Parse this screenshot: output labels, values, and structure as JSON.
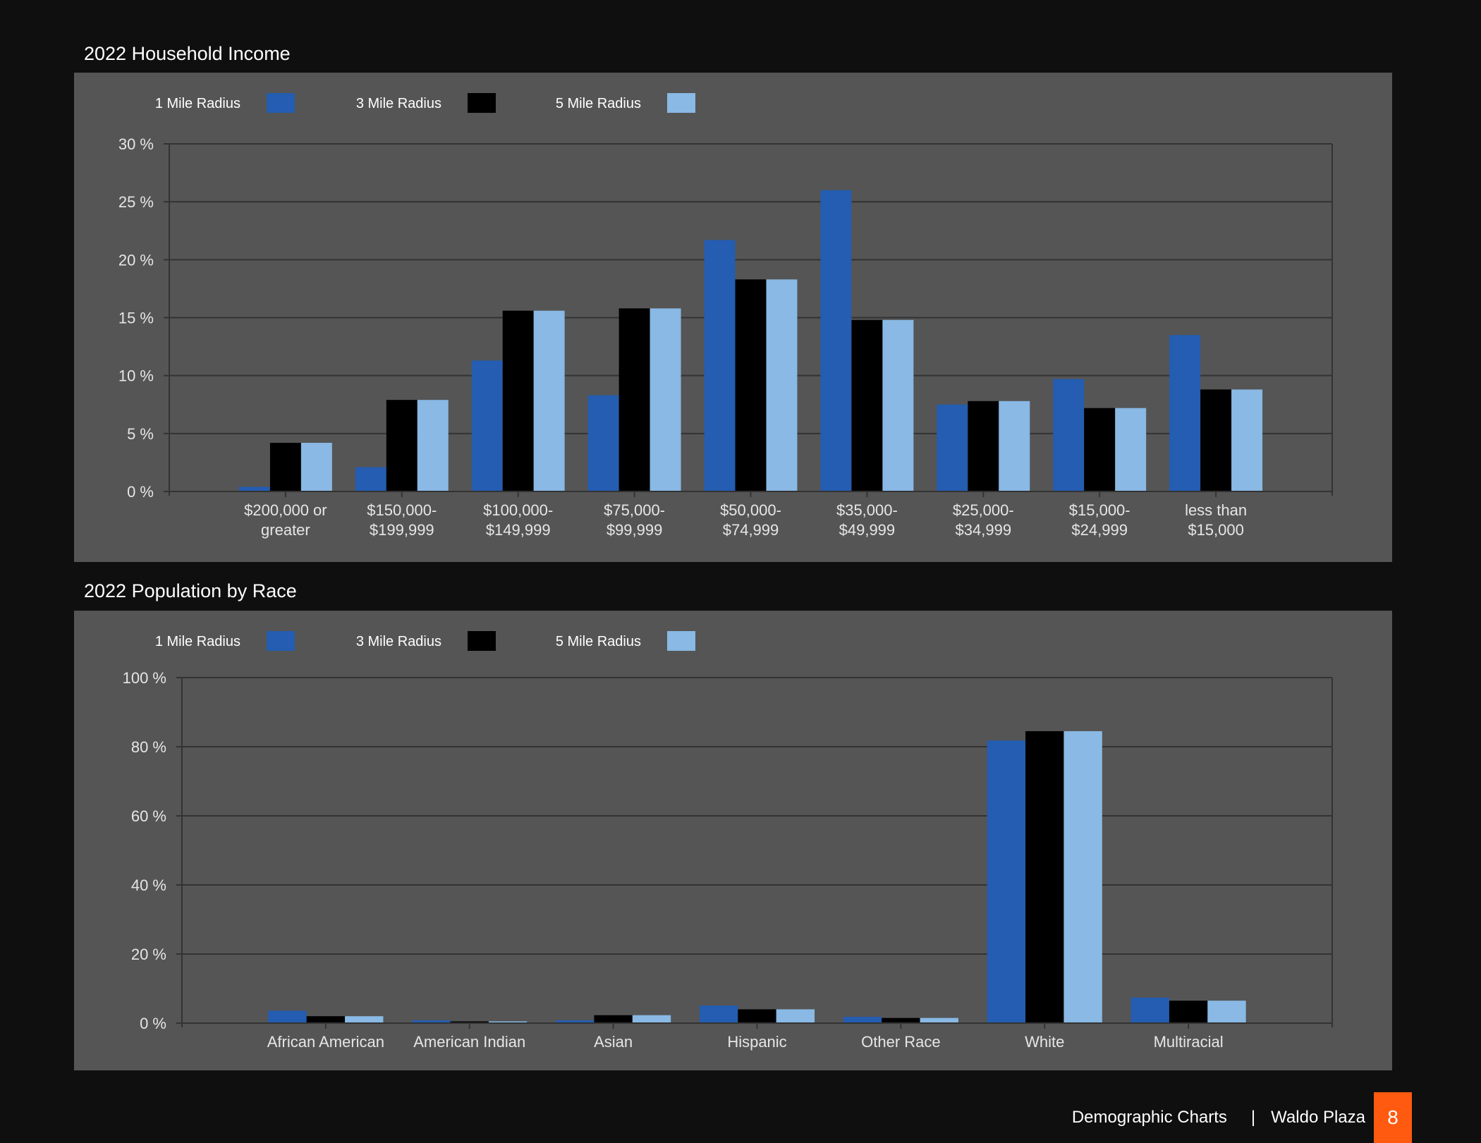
{
  "footer": {
    "section": "Demographic Charts",
    "separator": "|",
    "property": "Waldo Plaza",
    "page_number": "8",
    "accent_color": "#ff5a0f"
  },
  "chart_data": [
    {
      "type": "bar",
      "title": "2022 Household Income",
      "xlabel": "",
      "ylabel": "",
      "legend_position": "top-left",
      "grid": true,
      "ylim": [
        0,
        30
      ],
      "y_ticks": [
        0,
        5,
        10,
        15,
        20,
        25,
        30
      ],
      "y_tick_labels": [
        "0 %",
        "5 %",
        "10 %",
        "15 %",
        "20 %",
        "25 %",
        "30 %"
      ],
      "categories": [
        [
          "$200,000 or",
          "greater"
        ],
        [
          "$150,000-",
          "$199,999"
        ],
        [
          "$100,000-",
          "$149,999"
        ],
        [
          "$75,000-",
          "$99,999"
        ],
        [
          "$50,000-",
          "$74,999"
        ],
        [
          "$35,000-",
          "$49,999"
        ],
        [
          "$25,000-",
          "$34,999"
        ],
        [
          "$15,000-",
          "$24,999"
        ],
        [
          "less than",
          "$15,000"
        ]
      ],
      "series": [
        {
          "name": "1 Mile Radius",
          "color": "#245db1",
          "values": [
            0.4,
            2.1,
            11.3,
            8.3,
            21.7,
            26.0,
            7.5,
            9.7,
            13.5
          ]
        },
        {
          "name": "3 Mile Radius",
          "color": "#000000",
          "values": [
            4.2,
            7.9,
            15.6,
            15.8,
            18.3,
            14.8,
            7.8,
            7.2,
            8.8
          ]
        },
        {
          "name": "5 Mile Radius",
          "color": "#89b9e4",
          "values": [
            4.2,
            7.9,
            15.6,
            15.8,
            18.3,
            14.8,
            7.8,
            7.2,
            8.8
          ]
        }
      ]
    },
    {
      "type": "bar",
      "title": "2022 Population by Race",
      "xlabel": "",
      "ylabel": "",
      "legend_position": "top-left",
      "grid": true,
      "ylim": [
        0,
        100
      ],
      "y_ticks": [
        0,
        20,
        40,
        60,
        80,
        100
      ],
      "y_tick_labels": [
        "0 %",
        "20 %",
        "40 %",
        "60 %",
        "80 %",
        "100 %"
      ],
      "categories": [
        [
          "African American"
        ],
        [
          "American Indian"
        ],
        [
          "Asian"
        ],
        [
          "Hispanic"
        ],
        [
          "Other Race"
        ],
        [
          "White"
        ],
        [
          "Multiracial"
        ]
      ],
      "series": [
        {
          "name": "1 Mile Radius",
          "color": "#245db1",
          "values": [
            3.6,
            0.8,
            0.8,
            5.1,
            1.8,
            81.8,
            7.4
          ]
        },
        {
          "name": "3 Mile Radius",
          "color": "#000000",
          "values": [
            2.0,
            0.5,
            2.3,
            4.0,
            1.5,
            84.5,
            6.5
          ]
        },
        {
          "name": "5 Mile Radius",
          "color": "#89b9e4",
          "values": [
            2.0,
            0.5,
            2.3,
            4.0,
            1.5,
            84.5,
            6.5
          ]
        }
      ]
    }
  ]
}
